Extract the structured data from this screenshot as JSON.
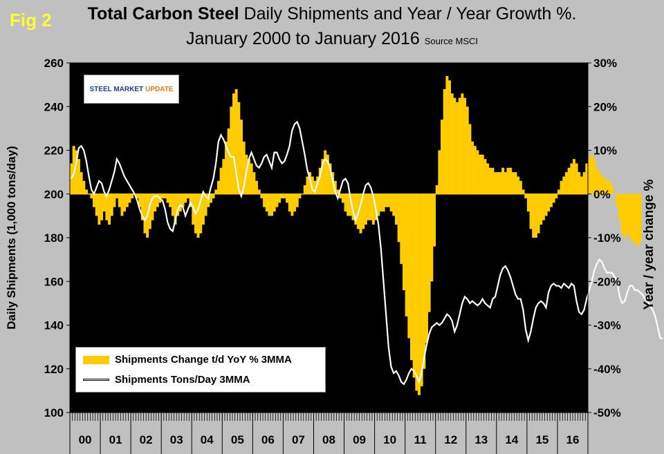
{
  "figure": {
    "fig_label": "Fig 2",
    "title_bold": "Total Carbon Steel",
    "title_rest": " Daily Shipments and Year / Year Growth %.",
    "subtitle": "January 2000 to January 2016",
    "source": "Source MSCI",
    "logo_main": "STEEL MARKET",
    "logo_accent": "UPDATE"
  },
  "colors": {
    "bars": "#ffcc00",
    "line": "#ffffff",
    "plot_bg": "#000000",
    "page_bg": "#c0c0c0"
  },
  "chart_data": {
    "type": "bar",
    "xlabel": "",
    "ylabel": "Daily Shipments (1,000 tons/day)",
    "y2label": "Year / year change %",
    "ylim": [
      100,
      260
    ],
    "y2lim": [
      -50,
      30
    ],
    "yticks": [
      "100",
      "120",
      "140",
      "160",
      "180",
      "200",
      "220",
      "240",
      "260"
    ],
    "y2ticks": [
      "-50%",
      "-40%",
      "-30%",
      "-20%",
      "-10%",
      "0%",
      "10%",
      "20%",
      "30%"
    ],
    "years": [
      "00",
      "01",
      "02",
      "03",
      "04",
      "05",
      "06",
      "07",
      "08",
      "09",
      "10",
      "11",
      "12",
      "13",
      "14",
      "15",
      "16"
    ],
    "grid": false,
    "legend": "bottom-left",
    "series": [
      {
        "name": "Shipments Change t/d YoY % 3MMA",
        "axis": "right",
        "kind": "bar",
        "values": [
          7,
          11,
          10,
          8,
          5,
          3,
          1,
          0,
          -1,
          -3,
          -5,
          -7,
          -6,
          -4,
          -6,
          -7,
          -5,
          -3,
          -1,
          -3,
          -5,
          -4,
          -3,
          -2,
          -1,
          0,
          -1,
          -3,
          -6,
          -9,
          -10,
          -8,
          -6,
          -4,
          -3,
          -2,
          -1,
          -1,
          -2,
          -3,
          -5,
          -7,
          -5,
          -4,
          -3,
          -2,
          -1,
          -3,
          -7,
          -9,
          -10,
          -9,
          -7,
          -5,
          -3,
          -2,
          -1,
          1,
          3,
          6,
          8,
          12,
          15,
          20,
          23,
          24,
          21,
          17,
          12,
          9,
          8,
          7,
          5,
          3,
          1,
          -1,
          -3,
          -4,
          -5,
          -5,
          -4,
          -3,
          -2,
          -1,
          -1,
          -2,
          -4,
          -5,
          -4,
          -3,
          -1,
          0,
          2,
          4,
          5,
          4,
          3,
          4,
          6,
          8,
          10,
          9,
          7,
          5,
          3,
          1,
          -1,
          -2,
          -4,
          -5,
          -5,
          -6,
          -7,
          -8,
          -9,
          -8,
          -7,
          -6,
          -6,
          -7,
          -6,
          -5,
          -4,
          -4,
          -3,
          -3,
          -4,
          -5,
          -7,
          -11,
          -16,
          -22,
          -28,
          -33,
          -38,
          -42,
          -45,
          -46,
          -44,
          -40,
          -34,
          -27,
          -20,
          -12,
          2,
          10,
          17,
          24,
          27,
          26,
          23,
          22,
          21,
          22,
          23,
          22,
          20,
          16,
          12,
          11,
          10,
          9,
          9,
          8,
          7,
          6,
          6,
          5,
          5,
          5,
          6,
          5,
          6,
          6,
          5,
          5,
          4,
          3,
          1,
          -1,
          -4,
          -8,
          -10,
          -10,
          -9,
          -7,
          -6,
          -5,
          -4,
          -3,
          -2,
          -1,
          1,
          3,
          4,
          5,
          6,
          7,
          8,
          7,
          5,
          4,
          5,
          7,
          8,
          9,
          8,
          6,
          5,
          4,
          4,
          3,
          3,
          2,
          0,
          -3,
          -6,
          -9,
          -10,
          -9,
          -10,
          -11,
          -11,
          -12,
          -11
        ]
      },
      {
        "name": "Shipments Tons/Day 3MMA",
        "axis": "left",
        "kind": "line",
        "values": [
          207,
          209,
          214,
          221,
          222,
          220,
          215,
          208,
          202,
          200,
          203,
          206,
          205,
          201,
          199,
          202,
          206,
          210,
          216,
          214,
          211,
          208,
          206,
          204,
          202,
          200,
          197,
          193,
          190,
          188,
          190,
          195,
          198,
          199,
          199,
          198,
          197,
          193,
          187,
          184,
          183,
          188,
          193,
          195,
          194,
          190,
          193,
          196,
          194,
          191,
          193,
          197,
          201,
          199,
          198,
          203,
          207,
          214,
          224,
          227,
          225,
          222,
          219,
          217,
          217,
          210,
          202,
          199,
          203,
          210,
          216,
          219,
          216,
          213,
          212,
          214,
          217,
          218,
          215,
          212,
          219,
          219,
          216,
          214,
          215,
          218,
          222,
          229,
          232,
          233,
          230,
          224,
          218,
          211,
          207,
          202,
          201,
          205,
          208,
          214,
          216,
          215,
          212,
          206,
          201,
          198,
          202,
          206,
          207,
          205,
          198,
          192,
          188,
          191,
          195,
          200,
          204,
          205,
          203,
          199,
          193,
          186,
          175,
          160,
          145,
          130,
          121,
          118,
          119,
          117,
          114,
          113,
          115,
          118,
          120,
          119,
          117,
          114,
          118,
          125,
          131,
          136,
          139,
          140,
          141,
          140,
          141,
          143,
          145,
          144,
          142,
          137,
          140,
          145,
          150,
          153,
          152,
          150,
          151,
          150,
          149,
          150,
          152,
          150,
          149,
          148,
          152,
          153,
          158,
          163,
          166,
          167,
          165,
          162,
          158,
          154,
          152,
          152,
          147,
          138,
          133,
          137,
          143,
          148,
          150,
          151,
          150,
          148,
          155,
          158,
          159,
          158,
          158,
          157,
          159,
          158,
          157,
          159,
          158,
          151,
          146,
          145,
          147,
          152,
          156,
          160,
          165,
          168,
          170,
          169,
          166,
          164,
          164,
          164,
          162,
          160,
          153,
          150,
          151,
          155,
          158,
          158,
          156,
          156,
          155,
          154,
          152,
          151,
          149,
          147,
          144,
          139,
          134,
          134
        ]
      }
    ]
  }
}
